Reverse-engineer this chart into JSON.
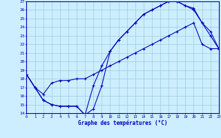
{
  "title": "Graphe des températures (°C)",
  "bg_color": "#cceeff",
  "line_color": "#0000bb",
  "grid_color": "#99ccdd",
  "ylim": [
    14,
    27
  ],
  "xlim": [
    0,
    23
  ],
  "yticks": [
    14,
    15,
    16,
    17,
    18,
    19,
    20,
    21,
    22,
    23,
    24,
    25,
    26,
    27
  ],
  "xticks": [
    0,
    1,
    2,
    3,
    4,
    5,
    6,
    7,
    8,
    9,
    10,
    11,
    12,
    13,
    14,
    15,
    16,
    17,
    18,
    19,
    20,
    21,
    22,
    23
  ],
  "line1_x": [
    0,
    1,
    2,
    3,
    4,
    5,
    6,
    7,
    8,
    9,
    10,
    11,
    12,
    13,
    14,
    15,
    16,
    17,
    18,
    19,
    20,
    21,
    22,
    23
  ],
  "line1_y": [
    18.5,
    17.0,
    15.5,
    15.0,
    14.8,
    14.8,
    14.8,
    13.8,
    17.2,
    19.5,
    21.2,
    22.5,
    23.5,
    24.5,
    25.5,
    26.0,
    26.5,
    27.0,
    27.0,
    26.5,
    26.0,
    24.5,
    23.0,
    21.5
  ],
  "line2_x": [
    0,
    1,
    2,
    3,
    4,
    5,
    6,
    7,
    8,
    9,
    10,
    11,
    12,
    13,
    14,
    15,
    16,
    17,
    18,
    19,
    20,
    21,
    22,
    23
  ],
  "line2_y": [
    18.5,
    17.0,
    15.5,
    15.0,
    14.8,
    14.8,
    14.8,
    13.8,
    14.5,
    17.2,
    21.2,
    22.5,
    23.5,
    24.5,
    25.5,
    26.0,
    26.5,
    27.0,
    27.0,
    26.5,
    26.2,
    24.5,
    23.5,
    21.5
  ],
  "line3_x": [
    0,
    1,
    2,
    3,
    4,
    5,
    6,
    7,
    8,
    9,
    10,
    11,
    12,
    13,
    14,
    15,
    16,
    17,
    18,
    19,
    20,
    21,
    22,
    23
  ],
  "line3_y": [
    18.5,
    17.0,
    16.2,
    17.5,
    17.8,
    17.8,
    18.0,
    18.0,
    18.5,
    19.0,
    19.5,
    20.0,
    20.5,
    21.0,
    21.5,
    22.0,
    22.5,
    23.0,
    23.5,
    24.0,
    24.5,
    22.0,
    21.5,
    21.5
  ]
}
